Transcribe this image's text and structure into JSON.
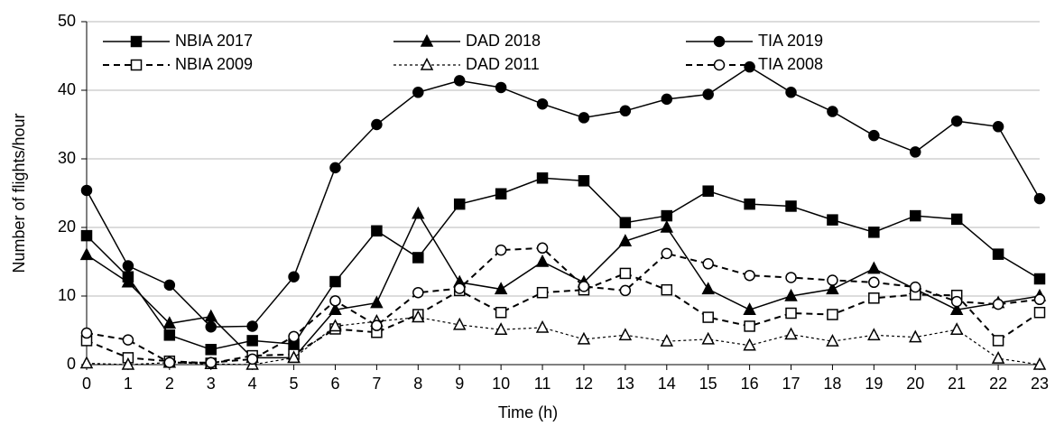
{
  "chart_data": {
    "type": "line",
    "x_label": "Time (h)",
    "y_label": "Number of flights/hour",
    "x": [
      0,
      1,
      2,
      3,
      4,
      5,
      6,
      7,
      8,
      9,
      10,
      11,
      12,
      13,
      14,
      15,
      16,
      17,
      18,
      19,
      20,
      21,
      22,
      23
    ],
    "xlim": [
      0,
      23
    ],
    "xticks": [
      0,
      1,
      2,
      3,
      4,
      5,
      6,
      7,
      8,
      9,
      10,
      11,
      12,
      13,
      14,
      15,
      16,
      17,
      18,
      19,
      20,
      21,
      22,
      23
    ],
    "ylim": [
      0,
      50
    ],
    "yticks": [
      0,
      10,
      20,
      30,
      40,
      50
    ],
    "grid": true,
    "legend": "top-left",
    "series": [
      {
        "name": "NBIA 2017",
        "color": "#000000",
        "marker": "square",
        "filled": true,
        "line_style": "solid",
        "values": [
          18.8,
          12.8,
          4.3,
          2.2,
          3.5,
          3.0,
          12.1,
          19.5,
          15.6,
          23.4,
          24.9,
          27.2,
          26.8,
          20.7,
          21.7,
          25.3,
          23.4,
          23.1,
          21.1,
          19.3,
          21.7,
          21.2,
          16.1,
          12.5
        ]
      },
      {
        "name": "DAD 2018",
        "color": "#000000",
        "marker": "triangle",
        "filled": true,
        "line_style": "solid",
        "values": [
          16,
          12,
          6,
          7,
          1,
          1,
          8,
          9,
          22,
          12,
          11,
          15,
          12,
          18,
          20,
          11,
          8,
          10,
          11,
          14,
          11,
          8,
          9,
          10
        ]
      },
      {
        "name": "TIA 2019",
        "color": "#000000",
        "marker": "circle",
        "filled": true,
        "line_style": "solid",
        "values": [
          25.4,
          14.4,
          11.6,
          5.5,
          5.6,
          12.8,
          28.7,
          35,
          39.7,
          41.4,
          40.4,
          38,
          36,
          37,
          38.7,
          39.4,
          43.4,
          39.7,
          36.9,
          33.4,
          31,
          35.5,
          34.7,
          24.2
        ]
      },
      {
        "name": "NBIA 2009",
        "color": "#000000",
        "marker": "square",
        "filled": false,
        "line_style": "dashed",
        "values": [
          3.5,
          1,
          0.5,
          0.2,
          1.3,
          1.5,
          5.2,
          4.7,
          7.3,
          10.8,
          7.6,
          10.5,
          10.9,
          13.3,
          10.9,
          6.9,
          5.6,
          7.5,
          7.3,
          9.7,
          10.2,
          10.1,
          3.5,
          7.6
        ]
      },
      {
        "name": "DAD 2011",
        "color": "#000000",
        "marker": "triangle",
        "filled": false,
        "line_style": "dotted",
        "values": [
          0.2,
          0,
          0.3,
          0.1,
          0,
          1.0,
          5.6,
          6.3,
          6.9,
          5.8,
          5.1,
          5.4,
          3.7,
          4.3,
          3.4,
          3.7,
          2.8,
          4.4,
          3.4,
          4.3,
          4.0,
          5.1,
          0.9,
          0
        ]
      },
      {
        "name": "TIA 2008",
        "color": "#000000",
        "marker": "circle",
        "filled": false,
        "line_style": "dashed",
        "values": [
          4.6,
          3.6,
          0.3,
          0.3,
          0.8,
          4.1,
          9.3,
          5.7,
          10.5,
          11.1,
          16.7,
          17,
          11.4,
          10.8,
          16.2,
          14.7,
          13,
          12.7,
          12.3,
          12.0,
          11.3,
          9.2,
          8.8,
          9.5
        ]
      }
    ]
  }
}
